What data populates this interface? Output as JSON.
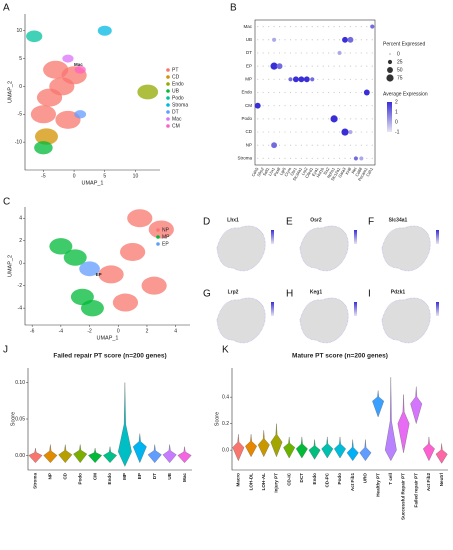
{
  "chart_data": [
    {
      "type": "scatter",
      "label": "A",
      "xlabel": "UMAP_1",
      "ylabel": "UMAP_2",
      "xlim": [
        -8,
        14
      ],
      "ylim": [
        -15,
        13
      ],
      "xticks": [
        -5,
        0,
        5,
        10
      ],
      "yticks": [
        -10,
        -5,
        0,
        5,
        10
      ],
      "annotation": "Mac",
      "series": [
        {
          "name": "PT",
          "color": "#f8766d",
          "x": [
            -4,
            -2,
            0,
            -1,
            -5,
            -3
          ],
          "y": [
            -2,
            0,
            2,
            -6,
            -5,
            3
          ]
        },
        {
          "name": "CD",
          "color": "#d39200",
          "x": [
            -4.5
          ],
          "y": [
            -9
          ]
        },
        {
          "name": "Endo",
          "color": "#93aa00",
          "x": [
            12
          ],
          "y": [
            -1
          ]
        },
        {
          "name": "UB",
          "color": "#00ba38",
          "x": [
            -5
          ],
          "y": [
            -11
          ]
        },
        {
          "name": "Podo",
          "color": "#00c19f",
          "x": [
            -6.5
          ],
          "y": [
            9
          ]
        },
        {
          "name": "Stroma",
          "color": "#00b9e3",
          "x": [
            5
          ],
          "y": [
            10
          ]
        },
        {
          "name": "DT",
          "color": "#619cff",
          "x": [
            1
          ],
          "y": [
            -5
          ]
        },
        {
          "name": "Mac",
          "color": "#db72fb",
          "x": [
            -1
          ],
          "y": [
            5
          ]
        },
        {
          "name": "CM",
          "color": "#ff61c3",
          "x": [
            1
          ],
          "y": [
            3
          ]
        }
      ]
    },
    {
      "type": "dotplot",
      "label": "B",
      "size_title": "Percent Expressed",
      "color_title": "Average Expression",
      "size_ticks": [
        0,
        25,
        50,
        75
      ],
      "color_ticks": [
        2,
        1,
        0,
        -1
      ],
      "color_low": "#e6e6f2",
      "color_high": "#3a2fd6",
      "clusters": [
        "Mac",
        "UB",
        "DT",
        "EP",
        "MP",
        "Endo",
        "CM",
        "Podo",
        "CD",
        "NP",
        "Stroma"
      ],
      "genes": [
        "Cdh5",
        "Sfrp2",
        "Sall1",
        "Lhx1",
        "Pax8",
        "Lgr5",
        "Crym",
        "Osr1",
        "Slc34a1",
        "Lrp2",
        "Cited1",
        "Eya1",
        "Hnf1b",
        "Six2",
        "Nphs1",
        "Slc12a1",
        "Gata3",
        "Krt8",
        "Ret",
        "Cd68",
        "Pecam1",
        "Cdh1"
      ],
      "dots": [
        {
          "gene": "Cdh1",
          "cluster": "Mac",
          "pct": 25,
          "expr": 1
        },
        {
          "gene": "Lhx1",
          "cluster": "UB",
          "pct": 25,
          "expr": 0
        },
        {
          "gene": "Gata3",
          "cluster": "UB",
          "pct": 50,
          "expr": 2
        },
        {
          "gene": "Krt8",
          "cluster": "UB",
          "pct": 50,
          "expr": 1
        },
        {
          "gene": "Slc12a1",
          "cluster": "DT",
          "pct": 25,
          "expr": 0
        },
        {
          "gene": "Lhx1",
          "cluster": "EP",
          "pct": 75,
          "expr": 2
        },
        {
          "gene": "Pax8",
          "cluster": "EP",
          "pct": 50,
          "expr": 1
        },
        {
          "gene": "Crym",
          "cluster": "MP",
          "pct": 25,
          "expr": 1
        },
        {
          "gene": "Osr1",
          "cluster": "MP",
          "pct": 50,
          "expr": 2
        },
        {
          "gene": "Slc34a1",
          "cluster": "MP",
          "pct": 50,
          "expr": 2
        },
        {
          "gene": "Lrp2",
          "cluster": "MP",
          "pct": 50,
          "expr": 2
        },
        {
          "gene": "Cited1",
          "cluster": "MP",
          "pct": 25,
          "expr": 1
        },
        {
          "gene": "Pecam1",
          "cluster": "Endo",
          "pct": 50,
          "expr": 2
        },
        {
          "gene": "Cdh5",
          "cluster": "CM",
          "pct": 50,
          "expr": 2
        },
        {
          "gene": "Nphs1",
          "cluster": "Podo",
          "pct": 75,
          "expr": 2
        },
        {
          "gene": "Gata3",
          "cluster": "CD",
          "pct": 75,
          "expr": 2
        },
        {
          "gene": "Krt8",
          "cluster": "CD",
          "pct": 25,
          "expr": 0
        },
        {
          "gene": "Lhx1",
          "cluster": "NP",
          "pct": 50,
          "expr": 1
        },
        {
          "gene": "Ret",
          "cluster": "Stroma",
          "pct": 25,
          "expr": 1
        },
        {
          "gene": "Cd68",
          "cluster": "Stroma",
          "pct": 25,
          "expr": 0
        }
      ]
    },
    {
      "type": "scatter",
      "label": "C",
      "xlabel": "UMAP_1",
      "ylabel": "UMAP_2",
      "xlim": [
        -6.5,
        5
      ],
      "ylim": [
        -5.5,
        5
      ],
      "xticks": [
        -6,
        -4,
        -2,
        0,
        2,
        4
      ],
      "yticks": [
        -4,
        -2,
        0,
        2,
        4
      ],
      "annotation": "EP",
      "series": [
        {
          "name": "NP",
          "color": "#f8766d",
          "x": [
            1,
            2.5,
            3,
            0.5,
            1.5,
            -0.5
          ],
          "y": [
            1,
            -2,
            3,
            -3.5,
            4,
            -1
          ]
        },
        {
          "name": "MP",
          "color": "#00ba38",
          "x": [
            -4,
            -3,
            -2.5,
            -1.8
          ],
          "y": [
            1.5,
            0.5,
            -3,
            -4
          ]
        },
        {
          "name": "EP",
          "color": "#619cff",
          "x": [
            -2
          ],
          "y": [
            -0.5
          ]
        }
      ]
    },
    {
      "type": "feature",
      "label": "D",
      "title": "Lhx1"
    },
    {
      "type": "feature",
      "label": "E",
      "title": "Osr2"
    },
    {
      "type": "feature",
      "label": "F",
      "title": "Slc34a1"
    },
    {
      "type": "feature",
      "label": "G",
      "title": "Lrp2"
    },
    {
      "type": "feature",
      "label": "H",
      "title": "Keg1"
    },
    {
      "type": "feature",
      "label": "I",
      "title": "Pdzk1"
    },
    {
      "type": "violin",
      "label": "J",
      "title": "Failed repair PT score (n=200 genes)",
      "ylabel": "Score",
      "ylim": [
        -0.02,
        0.12
      ],
      "yticks": [
        {
          "value": 0,
          "label": "0.00"
        },
        {
          "value": 0.05,
          "label": "0.05"
        },
        {
          "value": 0.1,
          "label": "0.10"
        }
      ],
      "categories": [
        "Stroma",
        "NP",
        "CD",
        "Podo",
        "CM",
        "Endo",
        "MP",
        "EP",
        "DT",
        "UB",
        "Mac"
      ],
      "values": [
        0,
        0,
        0.001,
        0.002,
        0,
        0,
        0.005,
        0.012,
        0.001,
        0.001,
        0
      ],
      "min": [
        -0.01,
        -0.01,
        -0.01,
        -0.01,
        -0.01,
        -0.01,
        -0.015,
        -0.01,
        -0.01,
        -0.01,
        -0.01
      ],
      "max": [
        0.01,
        0.015,
        0.015,
        0.015,
        0.01,
        0.012,
        0.1,
        0.03,
        0.015,
        0.015,
        0.012
      ],
      "colors": [
        "#f8766d",
        "#e08b00",
        "#b79f00",
        "#7cae00",
        "#00ba38",
        "#00c08b",
        "#00bfc4",
        "#00b4f0",
        "#619cff",
        "#c77cff",
        "#f564e3"
      ]
    },
    {
      "type": "violin",
      "label": "K",
      "title": "Mature PT score (n=200 genes)",
      "ylabel": "Score",
      "ylim": [
        -0.15,
        0.62
      ],
      "yticks": [
        {
          "value": 0,
          "label": "0.0"
        },
        {
          "value": 0.2,
          "label": "0.2"
        },
        {
          "value": 0.4,
          "label": "0.4"
        }
      ],
      "categories": [
        "Macro",
        "LOH-DL",
        "LOH-AL",
        "Injury PT",
        "CD-IC",
        "DCT",
        "Endo",
        "CD-PC",
        "Podo",
        "Act Fib1",
        "URO",
        "Healthy PT",
        "T cell",
        "Successful Repair PT",
        "Failed repair PT",
        "Act Fib2",
        "Neutrl"
      ],
      "values": [
        0.02,
        0.03,
        0.04,
        0.06,
        0.02,
        0.01,
        0,
        0.01,
        0.01,
        -0.02,
        -0.02,
        0.37,
        0,
        0.2,
        0.35,
        0.01,
        -0.03
      ],
      "min": [
        -0.08,
        -0.05,
        -0.05,
        -0.05,
        -0.06,
        -0.06,
        -0.07,
        -0.06,
        -0.06,
        -0.08,
        -0.08,
        0.25,
        -0.08,
        -0.02,
        0.2,
        -0.08,
        -0.1
      ],
      "max": [
        0.12,
        0.12,
        0.15,
        0.2,
        0.1,
        0.1,
        0.08,
        0.1,
        0.1,
        0.08,
        0.08,
        0.45,
        0.55,
        0.42,
        0.48,
        0.1,
        0.05
      ],
      "colors": [
        "#f8766d",
        "#e58700",
        "#c99800",
        "#a3a500",
        "#6bb100",
        "#00ba38",
        "#00bf7d",
        "#00c0af",
        "#00bcd8",
        "#00b0f6",
        "#619cff",
        "#3aa0ff",
        "#b983ff",
        "#e76bf3",
        "#d575fe",
        "#fd61d1",
        "#ff67a4"
      ]
    }
  ]
}
